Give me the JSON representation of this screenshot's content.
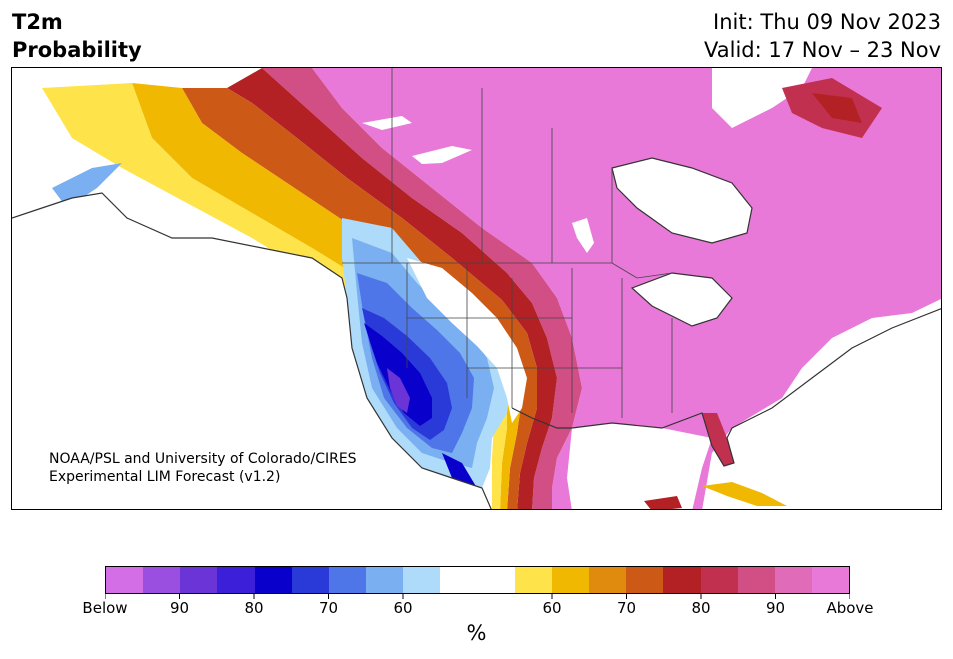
{
  "header": {
    "title_line1": "T2m",
    "title_line2": "Probability",
    "init_text": "Init: Thu 09 Nov 2023",
    "valid_text": "Valid: 17 Nov – 23 Nov"
  },
  "map": {
    "credit_line1": "NOAA/PSL and University of Colorado/CIRES",
    "credit_line2": "Experimental LIM Forecast (v1.2)",
    "region": "North America",
    "variable": "2-m temperature probability",
    "below_colors": [
      "#d46ee6",
      "#9b4fe0",
      "#6a34d6",
      "#3b1fd9",
      "#0a00cc",
      "#2a3ad8",
      "#4f76e8",
      "#7ab0f2",
      "#aedbfa"
    ],
    "above_colors": [
      "#ffe34a",
      "#f0b800",
      "#e08a0e",
      "#cc5a16",
      "#b32125",
      "#c23050",
      "#d24f86",
      "#e06bb8",
      "#e879d8"
    ]
  },
  "colorbar": {
    "unit": "%",
    "segments": [
      "#d46ee6",
      "#9b4fe0",
      "#6a34d6",
      "#3b1fd9",
      "#0a00cc",
      "#2a3ad8",
      "#4f76e8",
      "#7ab0f2",
      "#aedbfa",
      "#ffffff",
      "#ffffff",
      "#ffe34a",
      "#f0b800",
      "#e08a0e",
      "#cc5a16",
      "#b32125",
      "#c23050",
      "#d24f86",
      "#e06bb8",
      "#e879d8"
    ],
    "labels": [
      "Below",
      "90",
      "80",
      "70",
      "60",
      "60",
      "70",
      "80",
      "90",
      "Above"
    ]
  }
}
